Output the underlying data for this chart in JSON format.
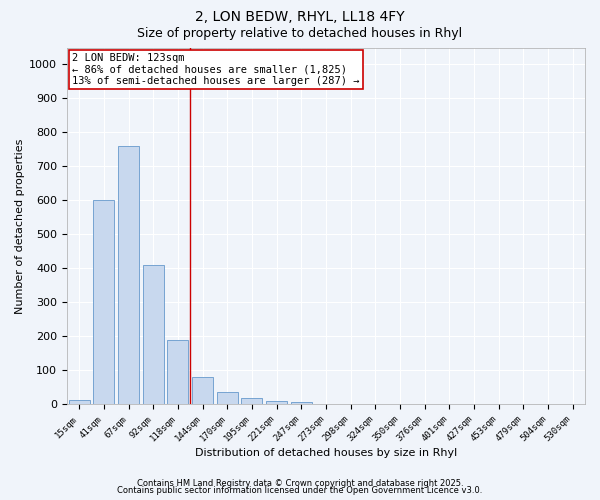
{
  "title1": "2, LON BEDW, RHYL, LL18 4FY",
  "title2": "Size of property relative to detached houses in Rhyl",
  "xlabel": "Distribution of detached houses by size in Rhyl",
  "ylabel": "Number of detached properties",
  "bar_labels": [
    "15sqm",
    "41sqm",
    "67sqm",
    "92sqm",
    "118sqm",
    "144sqm",
    "170sqm",
    "195sqm",
    "221sqm",
    "247sqm",
    "273sqm",
    "298sqm",
    "324sqm",
    "350sqm",
    "376sqm",
    "401sqm",
    "427sqm",
    "453sqm",
    "479sqm",
    "504sqm",
    "530sqm"
  ],
  "bar_values": [
    12,
    600,
    760,
    410,
    190,
    80,
    38,
    18,
    10,
    8,
    0,
    0,
    0,
    0,
    0,
    0,
    0,
    0,
    0,
    0,
    0
  ],
  "bar_color": "#c8d8ee",
  "bar_edge_color": "#6699cc",
  "ylim": [
    0,
    1050
  ],
  "vline_x": 4.5,
  "vline_color": "#cc0000",
  "annotation_line1": "2 LON BEDW: 123sqm",
  "annotation_line2": "← 86% of detached houses are smaller (1,825)",
  "annotation_line3": "13% of semi-detached houses are larger (287) →",
  "annotation_box_color": "#cc0000",
  "annotation_fontsize": 7.5,
  "title_fontsize1": 10,
  "title_fontsize2": 9,
  "footer1": "Contains HM Land Registry data © Crown copyright and database right 2025.",
  "footer2": "Contains public sector information licensed under the Open Government Licence v3.0.",
  "bg_color": "#f0f4fa",
  "plot_bg_color": "#f0f4fa",
  "grid_color": "#ffffff",
  "yticks": [
    0,
    100,
    200,
    300,
    400,
    500,
    600,
    700,
    800,
    900,
    1000
  ]
}
